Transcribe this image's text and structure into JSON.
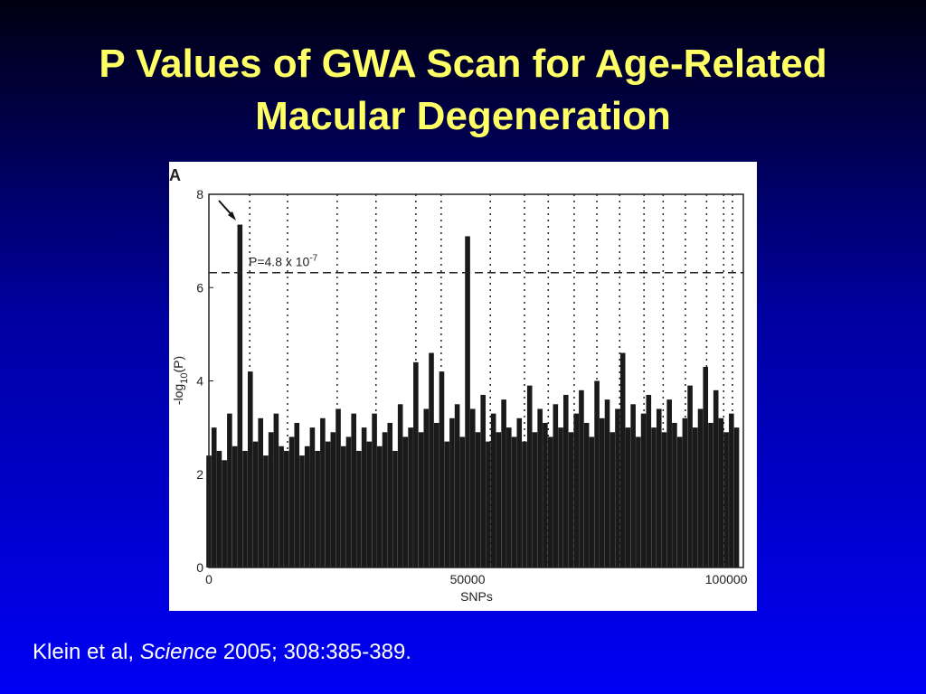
{
  "slide_title": [
    "P Values of GWA Scan for Age-Related",
    "Macular Degeneration"
  ],
  "chart_data": {
    "type": "bar",
    "panel_label": "A",
    "x_label": "SNPs",
    "y_label": {
      "main": "-log",
      "sub": "10",
      "rest": "(P)"
    },
    "x": [
      0,
      1000,
      2000,
      3000,
      4000,
      5000,
      6000,
      7000,
      8000,
      9000,
      10000,
      11000,
      12000,
      13000,
      14000,
      15000,
      16000,
      17000,
      18000,
      19000,
      20000,
      21000,
      22000,
      23000,
      24000,
      25000,
      26000,
      27000,
      28000,
      29000,
      30000,
      31000,
      32000,
      33000,
      34000,
      35000,
      36000,
      37000,
      38000,
      39000,
      40000,
      41000,
      42000,
      43000,
      44000,
      45000,
      46000,
      47000,
      48000,
      49000,
      50000,
      51000,
      52000,
      53000,
      54000,
      55000,
      56000,
      57000,
      58000,
      59000,
      60000,
      61000,
      62000,
      63000,
      64000,
      65000,
      66000,
      67000,
      68000,
      69000,
      70000,
      71000,
      72000,
      73000,
      74000,
      75000,
      76000,
      77000,
      78000,
      79000,
      80000,
      81000,
      82000,
      83000,
      84000,
      85000,
      86000,
      87000,
      88000,
      89000,
      90000,
      91000,
      92000,
      93000,
      94000,
      95000,
      96000,
      97000,
      98000,
      99000,
      100000,
      101000,
      102000
    ],
    "values": [
      2.4,
      3.0,
      2.5,
      2.3,
      3.3,
      2.6,
      7.35,
      2.5,
      4.2,
      2.7,
      3.2,
      2.4,
      2.9,
      3.3,
      2.6,
      2.5,
      2.8,
      3.1,
      2.4,
      2.6,
      3.0,
      2.5,
      3.2,
      2.7,
      2.9,
      3.4,
      2.6,
      2.8,
      3.3,
      2.5,
      3.0,
      2.7,
      3.3,
      2.6,
      2.9,
      3.1,
      2.5,
      3.5,
      2.8,
      3.0,
      4.4,
      2.9,
      3.4,
      4.6,
      3.1,
      4.2,
      2.7,
      3.2,
      3.5,
      2.8,
      7.1,
      3.4,
      2.9,
      3.7,
      2.7,
      3.3,
      2.9,
      3.6,
      3.0,
      2.8,
      3.2,
      2.7,
      3.9,
      2.9,
      3.4,
      3.1,
      2.8,
      3.5,
      3.0,
      3.7,
      2.9,
      3.3,
      3.8,
      3.1,
      2.8,
      4.0,
      3.2,
      3.6,
      2.9,
      3.4,
      4.6,
      3.0,
      3.5,
      2.8,
      3.3,
      3.7,
      3.0,
      3.4,
      2.9,
      3.6,
      3.1,
      2.8,
      3.2,
      3.9,
      3.0,
      3.4,
      4.3,
      3.1,
      3.8,
      3.2,
      2.9,
      3.3,
      3.0
    ],
    "color": "#1a1a1a",
    "separators": [
      7900,
      15200,
      24800,
      32300,
      40000,
      44900,
      54400,
      61000,
      65600,
      70600,
      75000,
      79400,
      84100,
      87800,
      92100,
      96200,
      99500,
      101200
    ],
    "threshold": {
      "value": 6.32,
      "text": "P=4.8 x 10",
      "superscript": "-7"
    },
    "xlim": [
      0,
      103300
    ],
    "xticks": [
      0,
      50000,
      100000
    ],
    "ylim": [
      0,
      8
    ],
    "yticks": [
      0,
      2,
      4,
      6,
      8
    ]
  },
  "citation": {
    "authors": "Klein et al, ",
    "journal": "Science",
    "details": " 2005; 308:385-389."
  }
}
